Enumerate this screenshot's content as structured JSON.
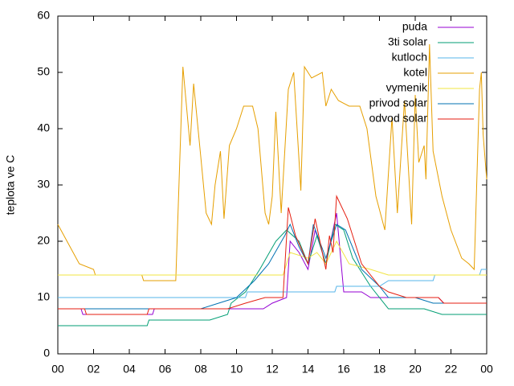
{
  "chart_data": {
    "type": "line",
    "ylabel": "teplota ve C",
    "xlim": [
      0,
      24
    ],
    "xticks": [
      {
        "value": 0,
        "label": "00"
      },
      {
        "value": 2,
        "label": "02"
      },
      {
        "value": 4,
        "label": "04"
      },
      {
        "value": 6,
        "label": "06"
      },
      {
        "value": 8,
        "label": "08"
      },
      10,
      12,
      14,
      16,
      18,
      20,
      22,
      {
        "value": 24,
        "label": "00"
      }
    ],
    "ylim": [
      0,
      60
    ],
    "yticks": [
      0,
      10,
      20,
      30,
      40,
      50,
      60
    ],
    "grid": false,
    "legend": "top-right",
    "series": [
      {
        "name": "puda",
        "color": "#9400d3",
        "x": [
          0,
          1.3,
          1.4,
          5.3,
          5.4,
          11.5,
          12,
          12.8,
          13,
          13.5,
          14,
          14.4,
          15,
          15.6,
          16,
          17,
          17.5,
          21.3,
          21.6,
          24
        ],
        "values": [
          8,
          8,
          7,
          7,
          8,
          8,
          9,
          10,
          20,
          18,
          15,
          22,
          16,
          25,
          11,
          11,
          10,
          10,
          9,
          9
        ]
      },
      {
        "name": "3ti solar",
        "color": "#009e73",
        "x": [
          0,
          5,
          5.1,
          8.5,
          9.5,
          9.7,
          10.5,
          11.3,
          12.2,
          12.8,
          13.5,
          14,
          14.5,
          15,
          15.5,
          16,
          16.5,
          17.5,
          18.5,
          20.5,
          21.5,
          24
        ],
        "values": [
          5,
          5,
          6,
          6,
          7,
          9,
          11,
          15,
          20,
          22,
          20,
          16,
          21,
          16,
          23,
          22,
          17,
          12,
          8,
          8,
          7,
          7
        ]
      },
      {
        "name": "kutloch",
        "color": "#56b4e9",
        "x": [
          0,
          10.5,
          10.6,
          15.5,
          15.6,
          18,
          18.5,
          21,
          21.1,
          23.6,
          23.7,
          24
        ],
        "values": [
          10,
          10,
          11,
          11,
          12,
          12,
          13,
          13,
          14,
          14,
          15,
          15
        ]
      },
      {
        "name": "kotel",
        "color": "#e69f00",
        "x": [
          0,
          1.2,
          2,
          2.1,
          4.7,
          4.8,
          6.6,
          7,
          7.4,
          7.6,
          8,
          8.3,
          8.6,
          8.8,
          9.1,
          9.3,
          9.6,
          10,
          10.4,
          10.9,
          11.2,
          11.6,
          11.8,
          12,
          12.2,
          12.5,
          12.9,
          13.2,
          13.6,
          13.8,
          14.2,
          14.8,
          15,
          15.3,
          15.7,
          16.3,
          16.9,
          17.3,
          17.8,
          18.3,
          18.7,
          19,
          19.4,
          19.8,
          20,
          20.2,
          20.5,
          20.6,
          20.8,
          21,
          21.5,
          22,
          22.6,
          23,
          23.3,
          23.6,
          23.7,
          23.8,
          24
        ],
        "values": [
          23,
          16,
          15,
          14,
          14,
          13,
          13,
          51,
          37,
          48,
          35,
          25,
          23,
          30,
          36,
          24,
          37,
          40,
          44,
          44,
          40,
          25,
          23,
          28,
          43,
          25,
          47,
          50,
          29,
          51,
          49,
          50,
          44,
          47,
          45,
          44,
          44,
          40,
          28,
          22,
          42,
          25,
          45,
          23,
          46,
          34,
          37,
          31,
          55,
          36,
          28,
          22,
          17,
          16,
          15,
          47,
          50,
          39,
          31
        ]
      },
      {
        "name": "vymenik",
        "color": "#f0e442",
        "x": [
          0,
          12.6,
          13,
          14,
          14.5,
          15,
          15.6,
          16.3,
          17.5,
          18.5,
          24
        ],
        "values": [
          14,
          14,
          18,
          17,
          18,
          16,
          20,
          16,
          15,
          14,
          14
        ]
      },
      {
        "name": "privod solar",
        "color": "#0072b2",
        "x": [
          0,
          8,
          9,
          10,
          11,
          11.8,
          12.7,
          13,
          13.5,
          14,
          14.3,
          15,
          15.6,
          16.1,
          17,
          18,
          18.5,
          20,
          21,
          24
        ],
        "values": [
          8,
          8,
          9,
          10,
          13,
          16,
          21,
          23,
          19,
          16,
          23,
          17,
          23,
          22,
          15,
          12,
          10,
          10,
          9,
          9
        ]
      },
      {
        "name": "odvod solar",
        "color": "#e51e10",
        "x": [
          0,
          1.5,
          1.6,
          5,
          5.1,
          9.5,
          10.5,
          11.6,
          12.6,
          12.9,
          13.3,
          14,
          14.4,
          15,
          15.2,
          15.4,
          15.6,
          16.2,
          17,
          18,
          18.5,
          19.5,
          21.3,
          21.6,
          24
        ],
        "values": [
          8,
          8,
          7,
          7,
          8,
          8,
          9,
          10,
          10,
          26,
          21,
          16,
          24,
          15,
          21,
          18,
          28,
          24,
          16,
          12,
          11,
          10,
          10,
          9,
          9
        ]
      }
    ]
  }
}
